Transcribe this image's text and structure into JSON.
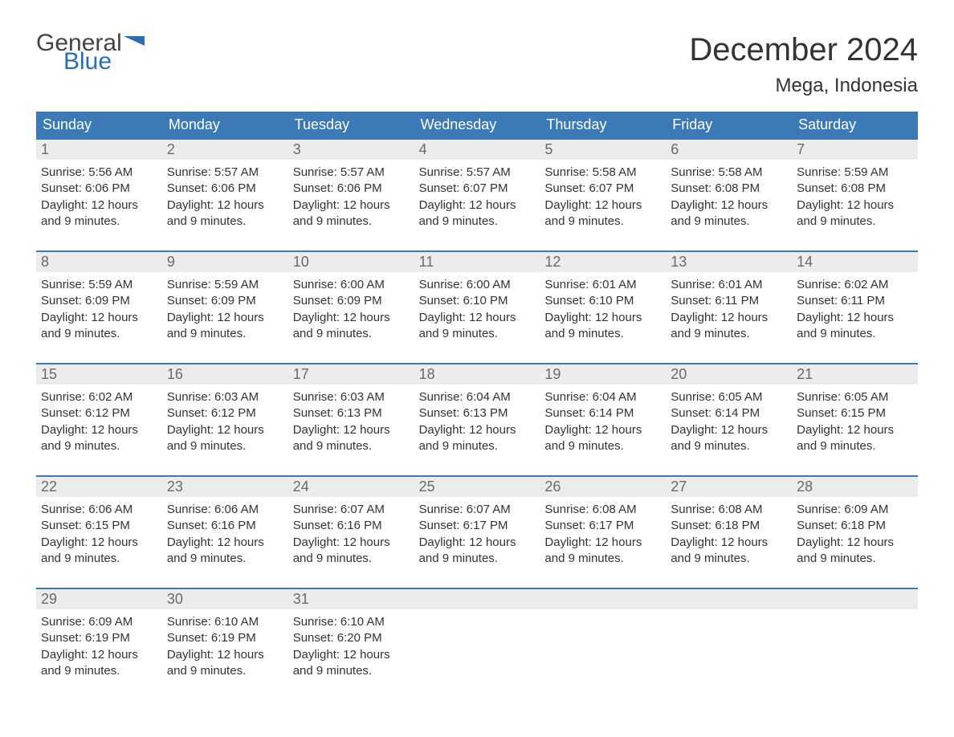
{
  "brand": {
    "word1": "General",
    "word2": "Blue",
    "word1_color": "#444444",
    "word2_color": "#2a6db2",
    "flag_color": "#2a6db2"
  },
  "title": "December 2024",
  "location": "Mega, Indonesia",
  "colors": {
    "header_bg": "#3b79b7",
    "header_text": "#ffffff",
    "daynum_bg": "#ececec",
    "daynum_text": "#6a6a6a",
    "body_text": "#333333",
    "week_divider": "#3b79b7",
    "page_bg": "#ffffff"
  },
  "typography": {
    "title_fontsize": 40,
    "location_fontsize": 24,
    "dow_fontsize": 18,
    "daynum_fontsize": 18,
    "cell_fontsize": 15
  },
  "days_of_week": [
    "Sunday",
    "Monday",
    "Tuesday",
    "Wednesday",
    "Thursday",
    "Friday",
    "Saturday"
  ],
  "labels": {
    "sunrise": "Sunrise:",
    "sunset": "Sunset:",
    "daylight": "Daylight:"
  },
  "weeks": [
    [
      {
        "n": "1",
        "sunrise": "5:56 AM",
        "sunset": "6:06 PM",
        "daylight": "12 hours and 9 minutes."
      },
      {
        "n": "2",
        "sunrise": "5:57 AM",
        "sunset": "6:06 PM",
        "daylight": "12 hours and 9 minutes."
      },
      {
        "n": "3",
        "sunrise": "5:57 AM",
        "sunset": "6:06 PM",
        "daylight": "12 hours and 9 minutes."
      },
      {
        "n": "4",
        "sunrise": "5:57 AM",
        "sunset": "6:07 PM",
        "daylight": "12 hours and 9 minutes."
      },
      {
        "n": "5",
        "sunrise": "5:58 AM",
        "sunset": "6:07 PM",
        "daylight": "12 hours and 9 minutes."
      },
      {
        "n": "6",
        "sunrise": "5:58 AM",
        "sunset": "6:08 PM",
        "daylight": "12 hours and 9 minutes."
      },
      {
        "n": "7",
        "sunrise": "5:59 AM",
        "sunset": "6:08 PM",
        "daylight": "12 hours and 9 minutes."
      }
    ],
    [
      {
        "n": "8",
        "sunrise": "5:59 AM",
        "sunset": "6:09 PM",
        "daylight": "12 hours and 9 minutes."
      },
      {
        "n": "9",
        "sunrise": "5:59 AM",
        "sunset": "6:09 PM",
        "daylight": "12 hours and 9 minutes."
      },
      {
        "n": "10",
        "sunrise": "6:00 AM",
        "sunset": "6:09 PM",
        "daylight": "12 hours and 9 minutes."
      },
      {
        "n": "11",
        "sunrise": "6:00 AM",
        "sunset": "6:10 PM",
        "daylight": "12 hours and 9 minutes."
      },
      {
        "n": "12",
        "sunrise": "6:01 AM",
        "sunset": "6:10 PM",
        "daylight": "12 hours and 9 minutes."
      },
      {
        "n": "13",
        "sunrise": "6:01 AM",
        "sunset": "6:11 PM",
        "daylight": "12 hours and 9 minutes."
      },
      {
        "n": "14",
        "sunrise": "6:02 AM",
        "sunset": "6:11 PM",
        "daylight": "12 hours and 9 minutes."
      }
    ],
    [
      {
        "n": "15",
        "sunrise": "6:02 AM",
        "sunset": "6:12 PM",
        "daylight": "12 hours and 9 minutes."
      },
      {
        "n": "16",
        "sunrise": "6:03 AM",
        "sunset": "6:12 PM",
        "daylight": "12 hours and 9 minutes."
      },
      {
        "n": "17",
        "sunrise": "6:03 AM",
        "sunset": "6:13 PM",
        "daylight": "12 hours and 9 minutes."
      },
      {
        "n": "18",
        "sunrise": "6:04 AM",
        "sunset": "6:13 PM",
        "daylight": "12 hours and 9 minutes."
      },
      {
        "n": "19",
        "sunrise": "6:04 AM",
        "sunset": "6:14 PM",
        "daylight": "12 hours and 9 minutes."
      },
      {
        "n": "20",
        "sunrise": "6:05 AM",
        "sunset": "6:14 PM",
        "daylight": "12 hours and 9 minutes."
      },
      {
        "n": "21",
        "sunrise": "6:05 AM",
        "sunset": "6:15 PM",
        "daylight": "12 hours and 9 minutes."
      }
    ],
    [
      {
        "n": "22",
        "sunrise": "6:06 AM",
        "sunset": "6:15 PM",
        "daylight": "12 hours and 9 minutes."
      },
      {
        "n": "23",
        "sunrise": "6:06 AM",
        "sunset": "6:16 PM",
        "daylight": "12 hours and 9 minutes."
      },
      {
        "n": "24",
        "sunrise": "6:07 AM",
        "sunset": "6:16 PM",
        "daylight": "12 hours and 9 minutes."
      },
      {
        "n": "25",
        "sunrise": "6:07 AM",
        "sunset": "6:17 PM",
        "daylight": "12 hours and 9 minutes."
      },
      {
        "n": "26",
        "sunrise": "6:08 AM",
        "sunset": "6:17 PM",
        "daylight": "12 hours and 9 minutes."
      },
      {
        "n": "27",
        "sunrise": "6:08 AM",
        "sunset": "6:18 PM",
        "daylight": "12 hours and 9 minutes."
      },
      {
        "n": "28",
        "sunrise": "6:09 AM",
        "sunset": "6:18 PM",
        "daylight": "12 hours and 9 minutes."
      }
    ],
    [
      {
        "n": "29",
        "sunrise": "6:09 AM",
        "sunset": "6:19 PM",
        "daylight": "12 hours and 9 minutes."
      },
      {
        "n": "30",
        "sunrise": "6:10 AM",
        "sunset": "6:19 PM",
        "daylight": "12 hours and 9 minutes."
      },
      {
        "n": "31",
        "sunrise": "6:10 AM",
        "sunset": "6:20 PM",
        "daylight": "12 hours and 9 minutes."
      },
      null,
      null,
      null,
      null
    ]
  ]
}
